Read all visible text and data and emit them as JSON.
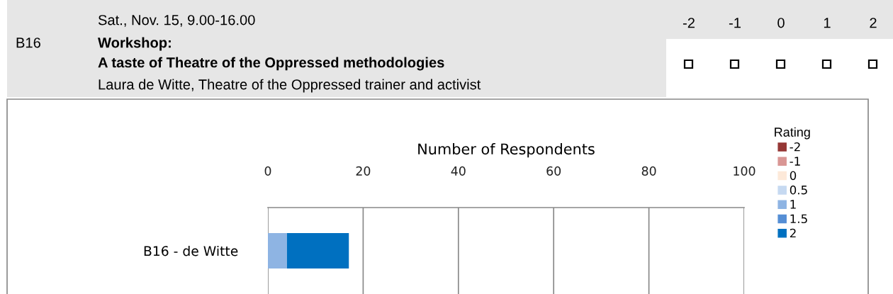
{
  "chart_data": {
    "type": "bar",
    "orientation": "horizontal",
    "stacked": true,
    "xlabel": "Number of Respondents",
    "legend_title": "Rating",
    "annotations": [
      "B16",
      "Sat., Nov. 15, 9.00-16.00",
      "Workshop:",
      "A taste of Theatre of the Oppressed methodologies",
      "Laura de Witte, Theatre of the Oppressed trainer and activist",
      "-2",
      "-1",
      "0",
      "1",
      "2"
    ],
    "categories": [
      "B16 - de Witte"
    ],
    "series": [
      {
        "name": "-2",
        "color": "#953735",
        "values": [
          0
        ]
      },
      {
        "name": "-1",
        "color": "#d99694",
        "values": [
          0
        ]
      },
      {
        "name": "0",
        "color": "#fde9d9",
        "values": [
          0
        ]
      },
      {
        "name": "0.5",
        "color": "#c6d9f1",
        "values": [
          0
        ]
      },
      {
        "name": "1",
        "color": "#8eb4e3",
        "values": [
          4
        ]
      },
      {
        "name": "1.5",
        "color": "#558ed5",
        "values": [
          0
        ]
      },
      {
        "name": "2",
        "color": "#0070c0",
        "values": [
          13
        ]
      }
    ],
    "xlim": [
      0,
      100
    ],
    "xticks": [
      0,
      20,
      40,
      60,
      80,
      100
    ],
    "grid": "x",
    "legend": "right"
  }
}
